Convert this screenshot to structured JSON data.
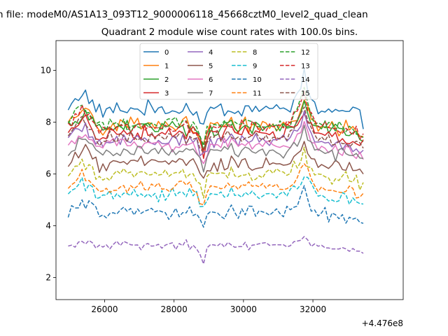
{
  "figure": {
    "suptitle": "n file: modeM0/AS1A13_093T12_9000006118_45668cztM0_level2_quad_clean",
    "title": "Quadrant 2 module wise count rates with 100.0s bins.",
    "offset_text": "+4.476e8"
  },
  "chart_data": {
    "type": "line",
    "title": "Quadrant 2 module wise count rates with 100.0s bins.",
    "xlabel": "",
    "ylabel": "",
    "xlim": [
      24600,
      34600
    ],
    "ylim": [
      1.15,
      11.15
    ],
    "xticks": [
      26000,
      28000,
      30000,
      32000
    ],
    "xtick_labels": [
      "26000",
      "28000",
      "30000",
      "32000"
    ],
    "yticks": [
      2,
      4,
      6,
      8,
      10
    ],
    "ytick_labels": [
      "2",
      "4",
      "6",
      "8",
      "10"
    ],
    "x_offset": "+4.476e8",
    "x": {
      "start": 24950,
      "step": 100,
      "count": 86
    },
    "legend": {
      "placement": "upper-center",
      "ncol": 4
    },
    "series": [
      {
        "name": "0",
        "color": "#1f77b4",
        "dash": "solid",
        "base": 8.5,
        "noise": 0.38
      },
      {
        "name": "1",
        "color": "#ff7f0e",
        "dash": "solid",
        "base": 7.9,
        "noise": 0.38
      },
      {
        "name": "2",
        "color": "#2ca02c",
        "dash": "solid",
        "base": 7.8,
        "noise": 0.36
      },
      {
        "name": "3",
        "color": "#d62728",
        "dash": "solid",
        "base": 7.6,
        "noise": 0.36
      },
      {
        "name": "4",
        "color": "#9467bd",
        "dash": "solid",
        "base": 7.3,
        "noise": 0.3
      },
      {
        "name": "5",
        "color": "#8c564b",
        "dash": "solid",
        "base": 6.4,
        "noise": 0.35
      },
      {
        "name": "6",
        "color": "#e377c2",
        "dash": "solid",
        "base": 7.1,
        "noise": 0.32
      },
      {
        "name": "7",
        "color": "#7f7f7f",
        "dash": "solid",
        "base": 6.9,
        "noise": 0.32
      },
      {
        "name": "8",
        "color": "#bcbd22",
        "dash": "dashed",
        "base": 6.0,
        "noise": 0.3
      },
      {
        "name": "9",
        "color": "#17becf",
        "dash": "dashed",
        "base": 5.2,
        "noise": 0.3
      },
      {
        "name": "10",
        "color": "#1f77b4",
        "dash": "dashed",
        "base": 4.5,
        "noise": 0.32
      },
      {
        "name": "11",
        "color": "#ff7f0e",
        "dash": "dashed",
        "base": 5.5,
        "noise": 0.3
      },
      {
        "name": "12",
        "color": "#2ca02c",
        "dash": "dashed",
        "base": 7.9,
        "noise": 0.32
      },
      {
        "name": "13",
        "color": "#d62728",
        "dash": "dashed",
        "base": 7.8,
        "noise": 0.33
      },
      {
        "name": "14",
        "color": "#9467bd",
        "dash": "dashed",
        "base": 3.25,
        "noise": 0.22
      },
      {
        "name": "15",
        "color": "#8c564b",
        "dash": "dashed",
        "base": 7.4,
        "noise": 0.32
      }
    ],
    "shape": {
      "keypoints": [
        [
          24950,
          0
        ],
        [
          25300,
          0.5
        ],
        [
          25500,
          0.4
        ],
        [
          25800,
          -0.1
        ],
        [
          26500,
          0
        ],
        [
          28000,
          0
        ],
        [
          28600,
          0
        ],
        [
          28850,
          -0.7
        ],
        [
          29000,
          0
        ],
        [
          31300,
          0
        ],
        [
          31600,
          0.55
        ],
        [
          31750,
          1.0
        ],
        [
          31900,
          0.3
        ],
        [
          32200,
          -0.05
        ],
        [
          33200,
          -0.2
        ],
        [
          33450,
          -0.5
        ],
        [
          33500,
          -3.5
        ]
      ],
      "flare_gain": {
        "0": 1.3,
        "12": 1.5,
        "13": 1.4,
        "14": 0.3,
        "15": 1.4,
        "9": 0.9,
        "10": 0.9
      }
    }
  }
}
